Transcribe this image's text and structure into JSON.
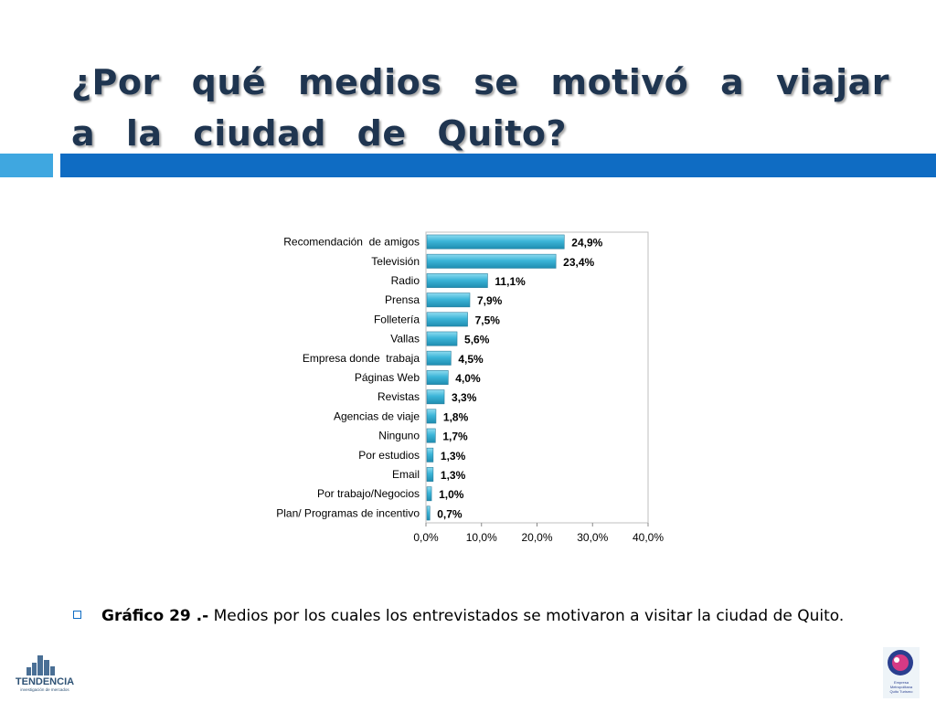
{
  "slide": {
    "title": "¿Por qué medios se motivó a viajar a la ciudad de Quito?",
    "caption_bold": "Gráfico 29 .-",
    "caption_text": " Medios por los cuales los entrevistados se motivaron a visitar la ciudad de Quito.",
    "logo_left_text": "TENDENCIA",
    "logo_left_sub": "investigación de mercados",
    "logo_right_text": "Empresa Metropolitana Quito Turismo"
  },
  "colors": {
    "title": "#1f3550",
    "band_light": "#3fa7e0",
    "band_dark": "#0f6cc3",
    "bar_fill": "#3cb5d8",
    "bar_dark": "#1f8db0"
  },
  "chart_data": {
    "type": "bar",
    "orientation": "horizontal",
    "categories": [
      "Recomendación  de amigos",
      "Televisión",
      "Radio",
      "Prensa",
      "Folletería",
      "Vallas",
      "Empresa donde  trabaja",
      "Páginas Web",
      "Revistas",
      "Agencias de viaje",
      "Ninguno",
      "Por estudios",
      "Email",
      "Por trabajo/Negocios",
      "Plan/ Programas de incentivo"
    ],
    "values": [
      24.9,
      23.4,
      11.1,
      7.9,
      7.5,
      5.6,
      4.5,
      4.0,
      3.3,
      1.8,
      1.7,
      1.3,
      1.3,
      1.0,
      0.7
    ],
    "value_labels": [
      "24,9%",
      "23,4%",
      "11,1%",
      "7,9%",
      "7,5%",
      "5,6%",
      "4,5%",
      "4,0%",
      "3,3%",
      "1,8%",
      "1,7%",
      "1,3%",
      "1,3%",
      "1,0%",
      "0,7%"
    ],
    "xticks": [
      "0,0%",
      "10,0%",
      "20,0%",
      "30,0%",
      "40,0%"
    ],
    "xlim": [
      0,
      40
    ],
    "grid": false,
    "legend": "none"
  }
}
